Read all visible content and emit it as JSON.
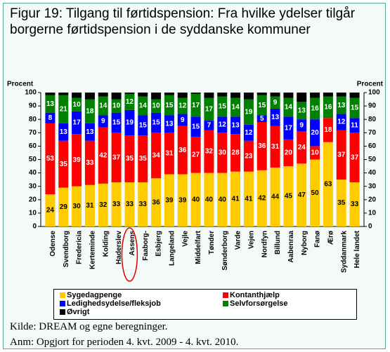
{
  "chart_data": {
    "type": "stacked_bar",
    "title": "Figur 19: Tilgang til førtidspension: Fra hvilke ydelser tilgår borgerne førtidspension i de syddanske kommuner",
    "y_label": "Procent",
    "y2_label": "Procent",
    "categories": [
      "Odense",
      "Svendborg",
      "Fredericia",
      "Kerteminde",
      "Kolding",
      "Haderslev",
      "Assens",
      "Faaborg-",
      "Esbjerg",
      "Langeland",
      "Vejle",
      "Middelfart",
      "Tønder",
      "Sønderborg",
      "Varde",
      "Vejen",
      "Nordfyn",
      "Billund",
      "Aabenraa",
      "Nyborg",
      "Fanø",
      "Ærø",
      "Syddanmark",
      "Hele landet"
    ],
    "highlight_index": 6,
    "series": [
      {
        "name": "Sygedagpenge",
        "color": "#ffcc00",
        "data_labels": true,
        "values": [
          24,
          29,
          30,
          31,
          32,
          33,
          33,
          33,
          36,
          39,
          39,
          40,
          40,
          40,
          41,
          41,
          42,
          44,
          45,
          47,
          50,
          63,
          35,
          33
        ]
      },
      {
        "name": "Kontanthjælp",
        "color": "#ff0000",
        "data_labels": true,
        "values": [
          53,
          35,
          39,
          33,
          42,
          37,
          35,
          35,
          34,
          31,
          36,
          27,
          32,
          30,
          28,
          23,
          36,
          31,
          20,
          24,
          10,
          18,
          37,
          37
        ]
      },
      {
        "name": "Ledighedsydelse/fleksjob",
        "color": "#0000ff",
        "data_labels": true,
        "values": [
          8,
          13,
          17,
          13,
          9,
          15,
          19,
          15,
          15,
          13,
          9,
          15,
          7,
          12,
          13,
          12,
          5,
          13,
          17,
          9,
          20,
          0,
          12,
          11
        ]
      },
      {
        "name": "Selvforsørgelse",
        "color": "#008000",
        "data_labels": true,
        "values": [
          13,
          21,
          10,
          18,
          14,
          10,
          12,
          14,
          10,
          15,
          12,
          17,
          17,
          15,
          14,
          19,
          15,
          9,
          14,
          13,
          16,
          16,
          13,
          15
        ]
      },
      {
        "name": "Øvrigt",
        "color": "#000000",
        "data_labels": false,
        "values": [
          2,
          2,
          4,
          5,
          3,
          5,
          1,
          3,
          5,
          2,
          4,
          1,
          4,
          3,
          4,
          5,
          2,
          3,
          4,
          7,
          4,
          3,
          3,
          4
        ]
      }
    ],
    "ylim": [
      0,
      100
    ],
    "yticks": [
      0,
      10,
      20,
      30,
      40,
      50,
      60,
      70,
      80,
      90,
      100
    ],
    "y2lim": [
      0,
      100
    ],
    "y2ticks": [
      0,
      10,
      20,
      30,
      40,
      50,
      60,
      70,
      80,
      90,
      100
    ]
  },
  "footer": {
    "source": "Kilde: DREAM og egne beregninger.",
    "note": "Anm: Opgjort for perioden 4. kvt. 2009 - 4. kvt. 2010."
  }
}
